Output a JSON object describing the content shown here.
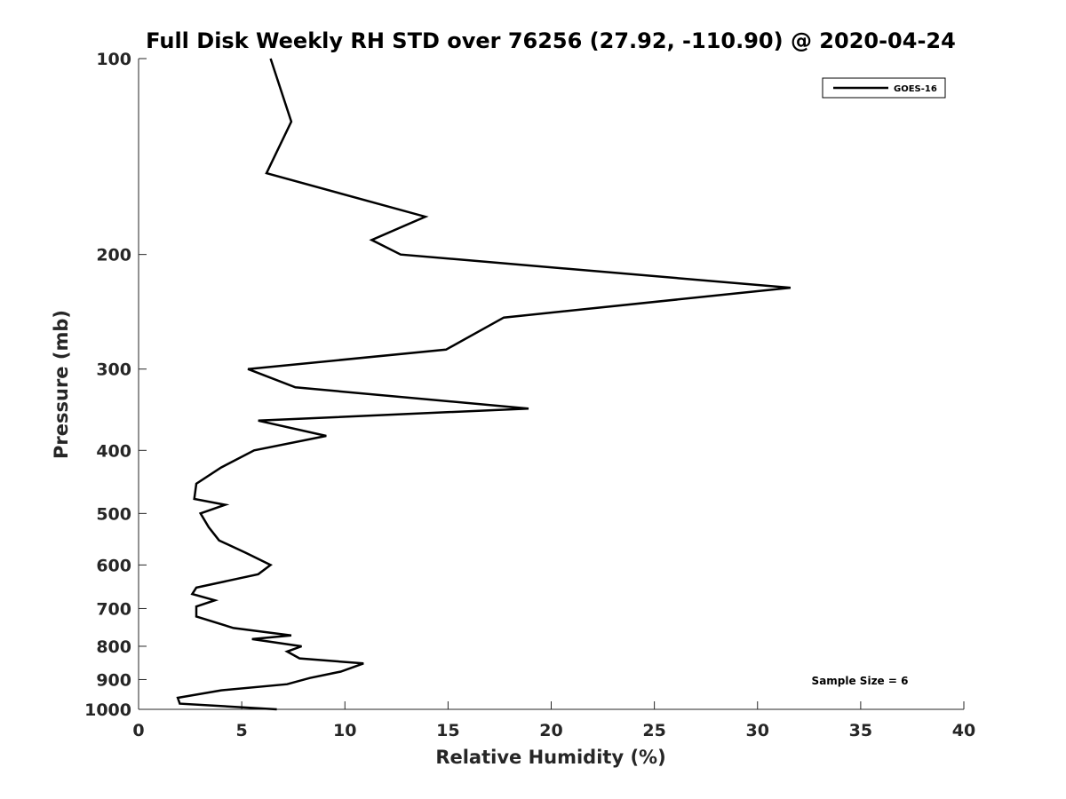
{
  "chart_data": {
    "type": "line",
    "title": "Full Disk Weekly RH STD over 76256 (27.92, -110.90) @ 2020-04-24",
    "xlabel": "Relative Humidity (%)",
    "ylabel": "Pressure (mb)",
    "xlim": [
      0,
      40
    ],
    "ylim": [
      100,
      1000
    ],
    "y_scale": "log",
    "y_reversed": true,
    "x_ticks": [
      0,
      5,
      10,
      15,
      20,
      25,
      30,
      35,
      40
    ],
    "y_ticks": [
      100,
      200,
      300,
      400,
      500,
      600,
      700,
      800,
      900,
      1000
    ],
    "grid": false,
    "legend_position": "top-right",
    "line_color": "#000000",
    "annotation": "Sample Size = 6",
    "series": [
      {
        "name": "GOES-16",
        "x": [
          6.4,
          7.4,
          6.2,
          13.9,
          11.3,
          12.7,
          31.6,
          17.7,
          14.9,
          5.3,
          7.6,
          18.9,
          5.8,
          9.1,
          5.6,
          4.0,
          2.8,
          2.7,
          4.2,
          3.0,
          3.4,
          3.9,
          5.2,
          6.4,
          5.8,
          2.8,
          2.6,
          3.7,
          2.8,
          2.8,
          4.6,
          7.4,
          5.5,
          7.9,
          7.2,
          7.8,
          10.9,
          9.8,
          8.3,
          7.2,
          4.0,
          1.9,
          2.0,
          6.7
        ],
        "y": [
          100,
          125,
          150,
          175,
          190,
          200,
          225,
          250,
          280,
          300,
          320,
          345,
          360,
          380,
          400,
          425,
          450,
          475,
          485,
          500,
          525,
          550,
          575,
          600,
          620,
          650,
          665,
          680,
          695,
          720,
          750,
          770,
          780,
          800,
          815,
          835,
          850,
          875,
          895,
          915,
          935,
          960,
          980,
          1000
        ]
      }
    ]
  }
}
